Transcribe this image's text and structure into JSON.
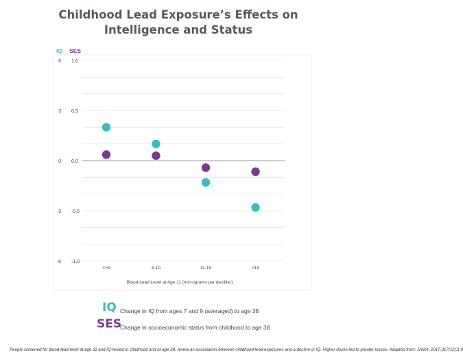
{
  "title_line1": "Childhood Lead Exposure’s Effects on",
  "title_line2": "Intelligence and Status",
  "iq_axis_label": "IQ",
  "ses_axis_label": "SES",
  "x_axis_label": "Blood-Lead Level at Age 11 (micrograms per deciliter)",
  "legend": {
    "iq_key": "IQ",
    "iq_text": "Change in IQ from ages 7 and 9 (averaged) to age 38",
    "ses_key": "SES",
    "ses_text": "Change in socioeconomic status from childhood to age 38"
  },
  "caption": "People screened for blood-lead level at age 11 and IQ-tested in childhood and at age 38, reveal an association between childhood lead exposures and a decline in IQ. Higher doses led to greater losses. Adapted from: JAMA. 2017;317(12):1-9",
  "colors": {
    "iq": "#3bbdc0",
    "ses": "#7a3a8f",
    "grid": "#e4e4e4",
    "zero_line": "#999999",
    "text": "#555a60"
  },
  "chart_data": {
    "type": "scatter",
    "categories": [
      "<=5",
      "6-10",
      "11-15",
      ">15"
    ],
    "xlabel": "Blood-Lead Level at Age 11 (micrograms per deciliter)",
    "left_axis": {
      "label": "IQ",
      "ylim": [
        -6,
        6
      ],
      "ticks": [
        6,
        3,
        0,
        -3,
        -6
      ]
    },
    "right_axis": {
      "label": "SES",
      "ylim": [
        -1.0,
        1.0
      ],
      "ticks": [
        "1.0",
        "0.5",
        "0.0",
        "-0.5",
        "-1.0"
      ]
    },
    "grid": true,
    "series": [
      {
        "name": "IQ",
        "axis": "left",
        "values": [
          2.0,
          1.0,
          -1.3,
          -2.8
        ]
      },
      {
        "name": "SES",
        "axis": "right",
        "values": [
          0.06,
          0.05,
          -0.07,
          -0.11
        ]
      }
    ]
  }
}
